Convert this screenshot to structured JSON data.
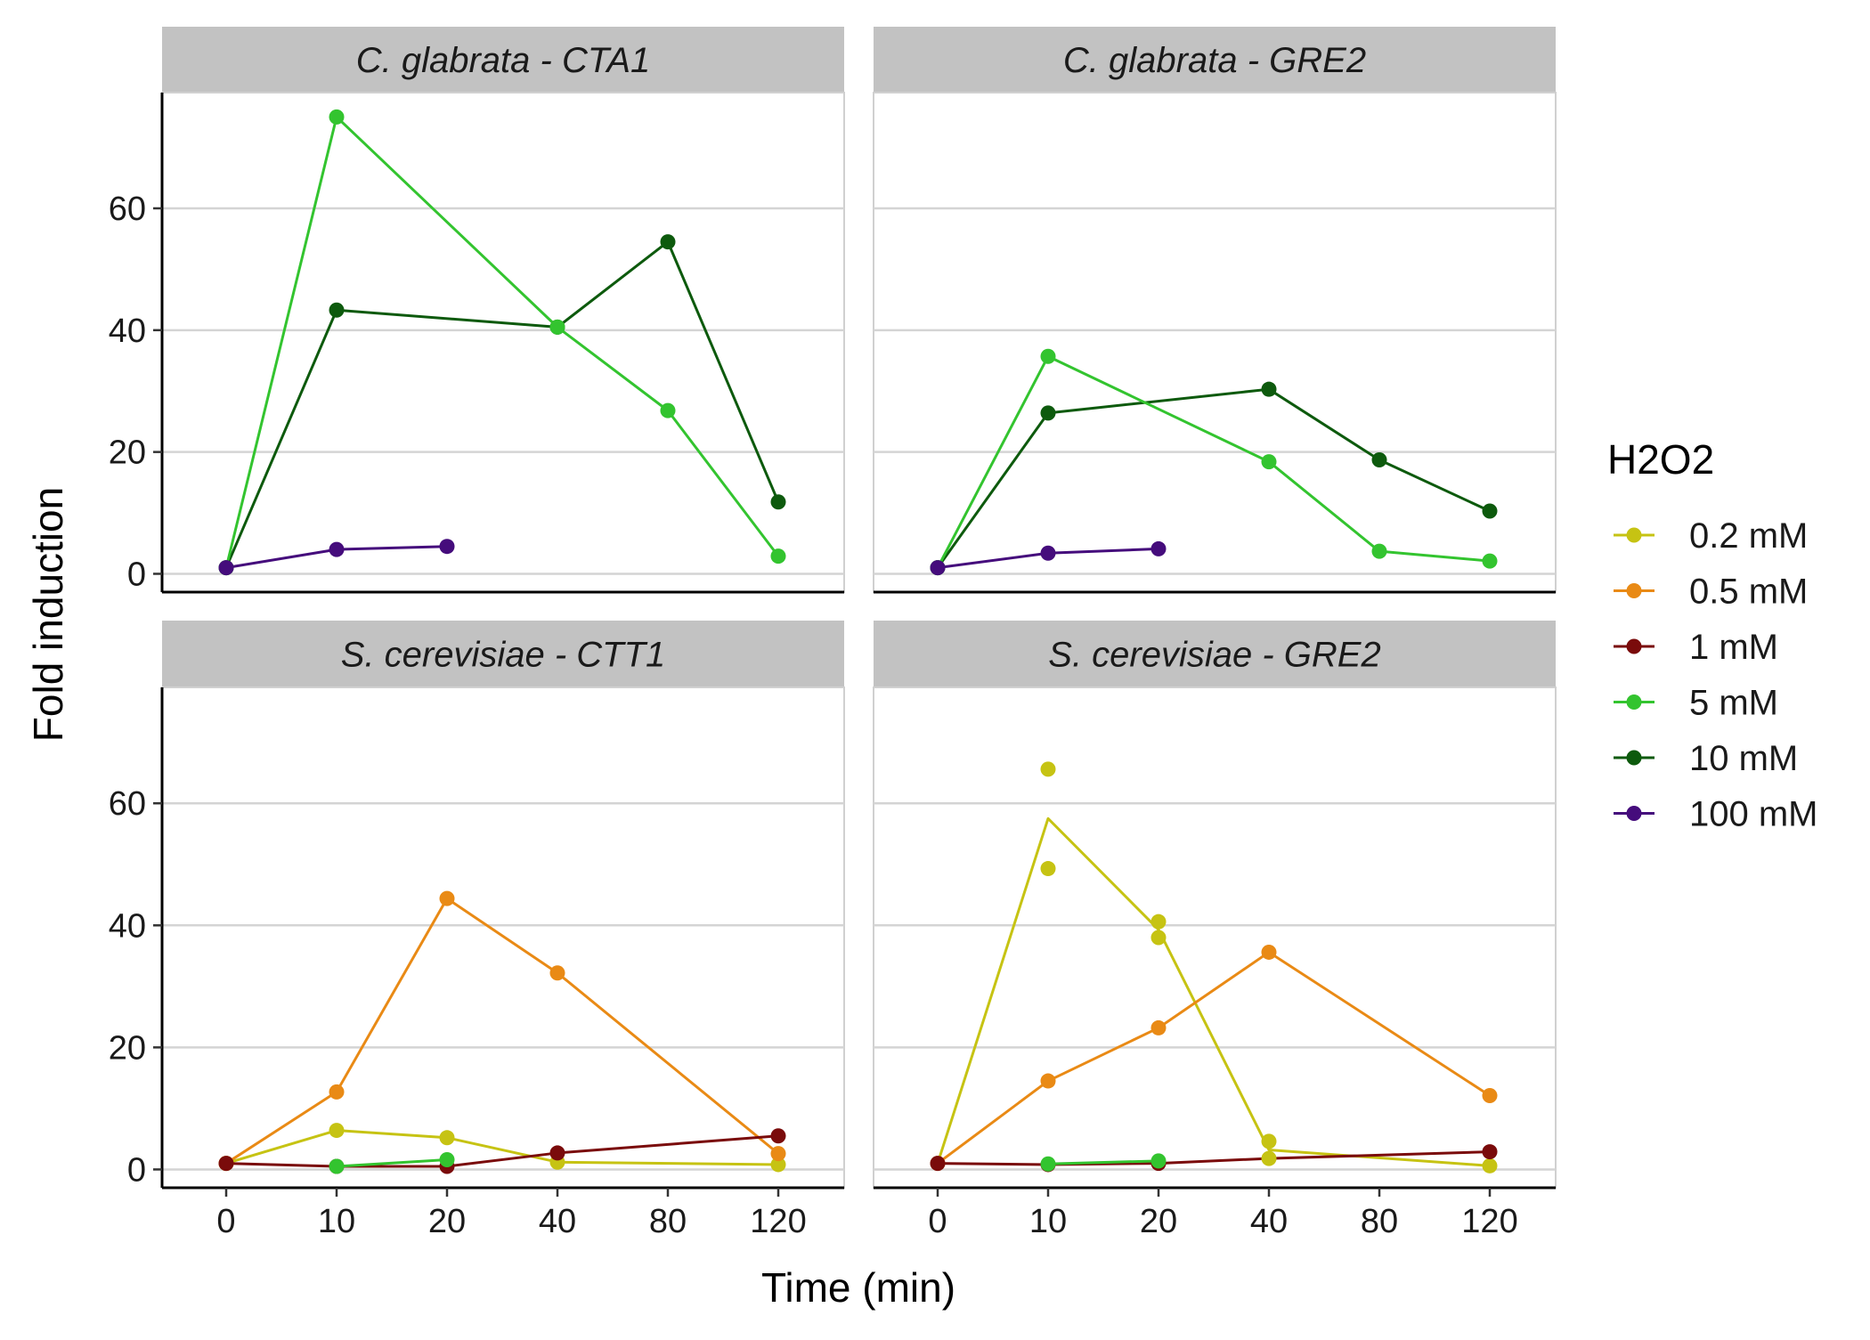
{
  "chart_data": {
    "type": "line",
    "facet_layout": "2x2",
    "x_axis": {
      "label": "Time (min)",
      "categories": [
        "0",
        "10",
        "20",
        "40",
        "80",
        "120"
      ],
      "scale": "categorical"
    },
    "y_axis": {
      "label": "Fold induction",
      "ticks": [
        0,
        20,
        40,
        60
      ],
      "range": [
        -3,
        79
      ],
      "shared": true
    },
    "grid": "horizontal",
    "legend": {
      "title": "H2O2",
      "placement": "right",
      "entries": [
        {
          "name": "0.2 mM",
          "color": "#c6c313"
        },
        {
          "name": "0.5 mM",
          "color": "#e98a15"
        },
        {
          "name": "1 mM",
          "color": "#7a0b0b"
        },
        {
          "name": "5 mM",
          "color": "#33c42f"
        },
        {
          "name": "10 mM",
          "color": "#0d5a0d"
        },
        {
          "name": "100 mM",
          "color": "#450c7c"
        }
      ]
    },
    "panels": [
      {
        "title": "C. glabrata - CTA1",
        "series": [
          {
            "name": "10 mM",
            "line": [
              [
                0,
                1
              ],
              [
                10,
                43.3
              ],
              [
                40,
                40.5
              ],
              [
                80,
                54.5
              ],
              [
                120,
                11.8
              ]
            ],
            "points": [
              [
                0,
                1
              ],
              [
                10,
                43.3
              ],
              [
                40,
                40.5
              ],
              [
                80,
                54.5
              ],
              [
                120,
                11.8
              ]
            ]
          },
          {
            "name": "5 mM",
            "line": [
              [
                0,
                1
              ],
              [
                10,
                75
              ],
              [
                40,
                40.5
              ],
              [
                80,
                26.8
              ],
              [
                120,
                2.9
              ]
            ],
            "points": [
              [
                0,
                1
              ],
              [
                10,
                75
              ],
              [
                40,
                40.5
              ],
              [
                80,
                26.8
              ],
              [
                120,
                2.9
              ]
            ]
          },
          {
            "name": "100 mM",
            "line": [
              [
                0,
                1
              ],
              [
                10,
                4
              ],
              [
                20,
                4.5
              ]
            ],
            "points": [
              [
                0,
                1
              ],
              [
                10,
                4
              ],
              [
                20,
                4.5
              ]
            ]
          }
        ]
      },
      {
        "title": "C. glabrata - GRE2",
        "series": [
          {
            "name": "10 mM",
            "line": [
              [
                0,
                1
              ],
              [
                10,
                26.4
              ],
              [
                40,
                30.3
              ],
              [
                80,
                18.7
              ],
              [
                120,
                10.3
              ]
            ],
            "points": [
              [
                0,
                1
              ],
              [
                10,
                26.4
              ],
              [
                40,
                30.3
              ],
              [
                80,
                18.7
              ],
              [
                120,
                10.3
              ]
            ]
          },
          {
            "name": "5 mM",
            "line": [
              [
                0,
                1
              ],
              [
                10,
                35.7
              ],
              [
                40,
                18.4
              ],
              [
                80,
                3.7
              ],
              [
                120,
                2.1
              ]
            ],
            "points": [
              [
                0,
                1
              ],
              [
                10,
                35.7
              ],
              [
                40,
                18.4
              ],
              [
                80,
                3.7
              ],
              [
                120,
                2.1
              ]
            ]
          },
          {
            "name": "100 mM",
            "line": [
              [
                0,
                1
              ],
              [
                10,
                3.4
              ],
              [
                20,
                4.1
              ]
            ],
            "points": [
              [
                0,
                1
              ],
              [
                10,
                3.4
              ],
              [
                20,
                4.1
              ]
            ]
          }
        ]
      },
      {
        "title": "S. cerevisiae - CTT1",
        "series": [
          {
            "name": "0.2 mM",
            "line": [
              [
                0,
                1
              ],
              [
                10,
                6.4
              ],
              [
                20,
                5.2
              ],
              [
                40,
                1.2
              ],
              [
                120,
                0.8
              ]
            ],
            "points": [
              [
                0,
                1
              ],
              [
                10,
                6.4
              ],
              [
                20,
                5.2
              ],
              [
                40,
                1.2
              ],
              [
                120,
                0.8
              ]
            ]
          },
          {
            "name": "0.5 mM",
            "line": [
              [
                0,
                1
              ],
              [
                10,
                12.7
              ],
              [
                20,
                44.4
              ],
              [
                40,
                32.2
              ],
              [
                120,
                2.6
              ]
            ],
            "points": [
              [
                0,
                1
              ],
              [
                10,
                12.7
              ],
              [
                20,
                44.4
              ],
              [
                40,
                32.2
              ],
              [
                120,
                2.6
              ]
            ]
          },
          {
            "name": "1 mM",
            "line": [
              [
                0,
                1
              ],
              [
                10,
                0.5
              ],
              [
                20,
                0.5
              ],
              [
                40,
                2.7
              ],
              [
                120,
                5.5
              ]
            ],
            "points": [
              [
                0,
                1
              ],
              [
                10,
                0.5
              ],
              [
                20,
                0.5
              ],
              [
                40,
                2.7
              ],
              [
                120,
                5.5
              ]
            ]
          },
          {
            "name": "5 mM",
            "line": [
              [
                10,
                0.5
              ],
              [
                20,
                1.6
              ]
            ],
            "points": [
              [
                10,
                0.5
              ],
              [
                20,
                1.6
              ]
            ]
          }
        ]
      },
      {
        "title": "S. cerevisiae - GRE2",
        "series": [
          {
            "name": "0.2 mM",
            "line": [
              [
                0,
                1
              ],
              [
                10,
                57.5
              ],
              [
                20,
                39.3
              ],
              [
                40,
                3.2
              ],
              [
                120,
                0.6
              ]
            ],
            "points": [
              [
                10,
                65.6
              ],
              [
                10,
                49.3
              ],
              [
                20,
                40.6
              ],
              [
                20,
                38
              ],
              [
                40,
                4.6
              ],
              [
                40,
                1.8
              ],
              [
                120,
                0.6
              ]
            ]
          },
          {
            "name": "0.5 mM",
            "line": [
              [
                0,
                1
              ],
              [
                10,
                14.5
              ],
              [
                20,
                23.2
              ],
              [
                40,
                35.6
              ],
              [
                120,
                12.1
              ]
            ],
            "points": [
              [
                0,
                1
              ],
              [
                10,
                14.5
              ],
              [
                20,
                23.2
              ],
              [
                40,
                35.6
              ],
              [
                120,
                12.1
              ]
            ]
          },
          {
            "name": "1 mM",
            "line": [
              [
                0,
                1
              ],
              [
                10,
                0.8
              ],
              [
                20,
                1
              ],
              [
                40,
                1.8
              ],
              [
                120,
                2.9
              ]
            ],
            "points": [
              [
                0,
                1
              ],
              [
                10,
                0.8
              ],
              [
                20,
                1
              ],
              [
                120,
                2.9
              ]
            ]
          },
          {
            "name": "5 mM",
            "line": [
              [
                10,
                0.9
              ],
              [
                20,
                1.4
              ]
            ],
            "points": [
              [
                10,
                0.9
              ],
              [
                20,
                1.4
              ]
            ]
          }
        ]
      }
    ]
  }
}
